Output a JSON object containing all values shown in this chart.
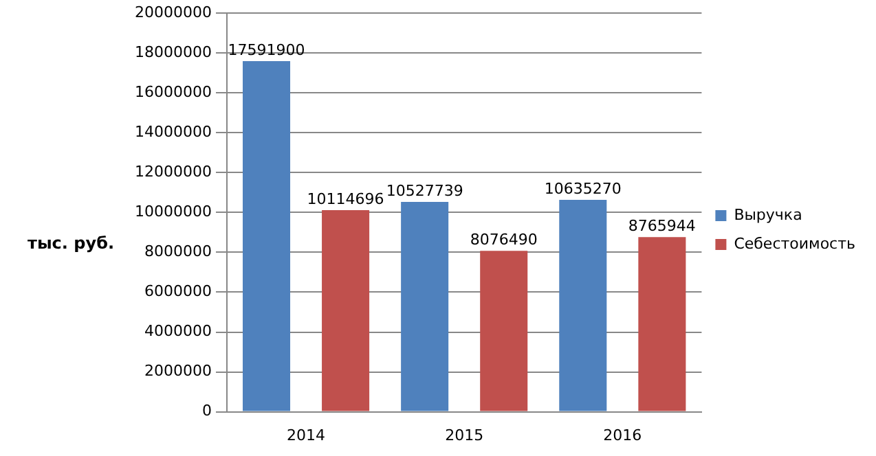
{
  "chart_data": {
    "type": "bar",
    "ylabel": "тыс. руб.",
    "categories": [
      "2014",
      "2015",
      "2016"
    ],
    "series": [
      {
        "name": "Выручка",
        "color": "#4f81bd",
        "values": [
          17591900,
          10527739,
          10635270
        ]
      },
      {
        "name": "Себестоимость",
        "color": "#c0504d",
        "values": [
          10114696,
          8076490,
          8765944
        ]
      }
    ],
    "ylim": [
      0,
      20000000
    ],
    "yticks": [
      0,
      2000000,
      4000000,
      6000000,
      8000000,
      10000000,
      12000000,
      14000000,
      16000000,
      18000000,
      20000000
    ],
    "grid": "y",
    "legend": "right",
    "data_labels": true
  }
}
